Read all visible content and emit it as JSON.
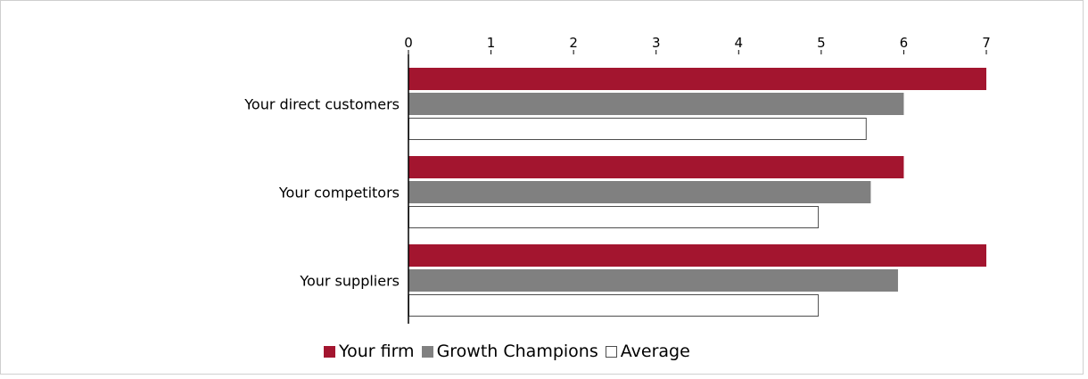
{
  "chart_data": {
    "type": "bar",
    "orientation": "horizontal",
    "categories": [
      "Your direct customers",
      "Your competitors",
      "Your suppliers"
    ],
    "series": [
      {
        "name": "Your firm",
        "color": "#a3152f",
        "values": [
          7,
          6,
          7
        ]
      },
      {
        "name": "Growth Champions",
        "color": "#808080",
        "values": [
          6,
          5.6,
          5.93
        ]
      },
      {
        "name": "Average",
        "color": "#ffffff",
        "values": [
          5.55,
          4.97,
          4.97
        ]
      }
    ],
    "xlim": [
      0,
      7
    ],
    "xticks": [
      "0",
      "1",
      "2",
      "3",
      "4",
      "5",
      "6",
      "7"
    ],
    "axis_position": "top",
    "grid": false,
    "legend_position": "bottom"
  }
}
